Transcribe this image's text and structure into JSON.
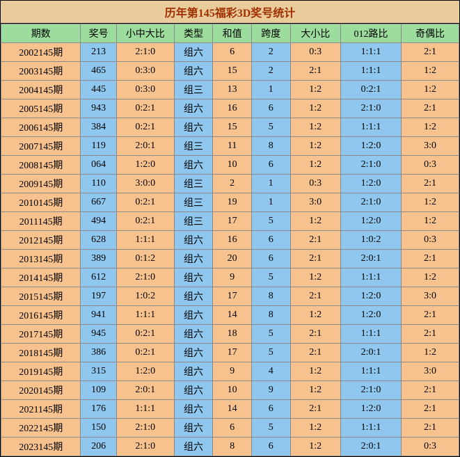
{
  "title": "历年第145福彩3D奖号统计",
  "columns": [
    "期数",
    "奖号",
    "小中大比",
    "类型",
    "和值",
    "跨度",
    "大小比",
    "012路比",
    "奇偶比"
  ],
  "colors": {
    "header_bg": "#9cdc9c",
    "title_bg": "#eacb9c",
    "orange": "#f7c28e",
    "blue": "#8fc7ef",
    "border": "#8a8a8a",
    "title_text": "#a03000"
  },
  "col_classes": [
    "col-period",
    "col-num",
    "col-ratio",
    "col-type",
    "col-sum",
    "col-span",
    "col-size",
    "col-012",
    "col-oe"
  ],
  "rows": [
    {
      "cells": [
        "2002145期",
        "213",
        "2:1:0",
        "组六",
        "6",
        "2",
        "0:3",
        "1:1:1",
        "2:1"
      ],
      "colors": [
        "o",
        "b",
        "o",
        "b",
        "o",
        "b",
        "o",
        "b",
        "o"
      ]
    },
    {
      "cells": [
        "2003145期",
        "465",
        "0:3:0",
        "组六",
        "15",
        "2",
        "2:1",
        "1:1:1",
        "1:2"
      ],
      "colors": [
        "o",
        "b",
        "o",
        "b",
        "o",
        "b",
        "o",
        "b",
        "o"
      ]
    },
    {
      "cells": [
        "2004145期",
        "445",
        "0:3:0",
        "组三",
        "13",
        "1",
        "1:2",
        "0:2:1",
        "1:2"
      ],
      "colors": [
        "o",
        "b",
        "o",
        "b",
        "o",
        "b",
        "o",
        "b",
        "o"
      ]
    },
    {
      "cells": [
        "2005145期",
        "943",
        "0:2:1",
        "组六",
        "16",
        "6",
        "1:2",
        "2:1:0",
        "2:1"
      ],
      "colors": [
        "o",
        "b",
        "o",
        "b",
        "o",
        "b",
        "o",
        "b",
        "o"
      ]
    },
    {
      "cells": [
        "2006145期",
        "384",
        "0:2:1",
        "组六",
        "15",
        "5",
        "1:2",
        "1:1:1",
        "1:2"
      ],
      "colors": [
        "o",
        "b",
        "o",
        "b",
        "o",
        "b",
        "o",
        "b",
        "o"
      ]
    },
    {
      "cells": [
        "2007145期",
        "119",
        "2:0:1",
        "组三",
        "11",
        "8",
        "1:2",
        "1:2:0",
        "3:0"
      ],
      "colors": [
        "o",
        "b",
        "o",
        "b",
        "o",
        "b",
        "o",
        "b",
        "o"
      ]
    },
    {
      "cells": [
        "2008145期",
        "064",
        "1:2:0",
        "组六",
        "10",
        "6",
        "1:2",
        "2:1:0",
        "0:3"
      ],
      "colors": [
        "o",
        "b",
        "o",
        "b",
        "o",
        "b",
        "o",
        "b",
        "o"
      ]
    },
    {
      "cells": [
        "2009145期",
        "110",
        "3:0:0",
        "组三",
        "2",
        "1",
        "0:3",
        "1:2:0",
        "2:1"
      ],
      "colors": [
        "o",
        "b",
        "o",
        "b",
        "o",
        "b",
        "o",
        "b",
        "o"
      ]
    },
    {
      "cells": [
        "2010145期",
        "667",
        "0:2:1",
        "组三",
        "19",
        "1",
        "3:0",
        "2:1:0",
        "1:2"
      ],
      "colors": [
        "o",
        "b",
        "o",
        "b",
        "o",
        "b",
        "o",
        "b",
        "o"
      ]
    },
    {
      "cells": [
        "2011145期",
        "494",
        "0:2:1",
        "组三",
        "17",
        "5",
        "1:2",
        "1:2:0",
        "1:2"
      ],
      "colors": [
        "o",
        "b",
        "o",
        "b",
        "o",
        "b",
        "o",
        "b",
        "o"
      ]
    },
    {
      "cells": [
        "2012145期",
        "628",
        "1:1:1",
        "组六",
        "16",
        "6",
        "2:1",
        "1:0:2",
        "0:3"
      ],
      "colors": [
        "o",
        "b",
        "o",
        "b",
        "o",
        "b",
        "o",
        "b",
        "o"
      ]
    },
    {
      "cells": [
        "2013145期",
        "389",
        "0:1:2",
        "组六",
        "20",
        "6",
        "2:1",
        "2:0:1",
        "2:1"
      ],
      "colors": [
        "o",
        "b",
        "o",
        "b",
        "o",
        "b",
        "o",
        "b",
        "o"
      ]
    },
    {
      "cells": [
        "2014145期",
        "612",
        "2:1:0",
        "组六",
        "9",
        "5",
        "1:2",
        "1:1:1",
        "1:2"
      ],
      "colors": [
        "o",
        "b",
        "o",
        "b",
        "o",
        "b",
        "o",
        "b",
        "o"
      ]
    },
    {
      "cells": [
        "2015145期",
        "197",
        "1:0:2",
        "组六",
        "17",
        "8",
        "2:1",
        "1:2:0",
        "3:0"
      ],
      "colors": [
        "o",
        "b",
        "o",
        "b",
        "o",
        "b",
        "o",
        "b",
        "o"
      ]
    },
    {
      "cells": [
        "2016145期",
        "941",
        "1:1:1",
        "组六",
        "14",
        "8",
        "1:2",
        "1:2:0",
        "2:1"
      ],
      "colors": [
        "o",
        "b",
        "o",
        "b",
        "o",
        "b",
        "o",
        "b",
        "o"
      ]
    },
    {
      "cells": [
        "2017145期",
        "945",
        "0:2:1",
        "组六",
        "18",
        "5",
        "2:1",
        "1:1:1",
        "2:1"
      ],
      "colors": [
        "o",
        "b",
        "o",
        "b",
        "o",
        "b",
        "o",
        "b",
        "o"
      ]
    },
    {
      "cells": [
        "2018145期",
        "386",
        "0:2:1",
        "组六",
        "17",
        "5",
        "2:1",
        "2:0:1",
        "1:2"
      ],
      "colors": [
        "o",
        "b",
        "o",
        "b",
        "o",
        "b",
        "o",
        "b",
        "o"
      ]
    },
    {
      "cells": [
        "2019145期",
        "315",
        "1:2:0",
        "组六",
        "9",
        "4",
        "1:2",
        "1:1:1",
        "3:0"
      ],
      "colors": [
        "o",
        "b",
        "o",
        "b",
        "o",
        "b",
        "o",
        "b",
        "o"
      ]
    },
    {
      "cells": [
        "2020145期",
        "109",
        "2:0:1",
        "组六",
        "10",
        "9",
        "1:2",
        "2:1:0",
        "2:1"
      ],
      "colors": [
        "o",
        "b",
        "o",
        "b",
        "o",
        "b",
        "o",
        "b",
        "o"
      ]
    },
    {
      "cells": [
        "2021145期",
        "176",
        "1:1:1",
        "组六",
        "14",
        "6",
        "2:1",
        "1:2:0",
        "2:1"
      ],
      "colors": [
        "o",
        "b",
        "o",
        "b",
        "o",
        "b",
        "o",
        "b",
        "o"
      ]
    },
    {
      "cells": [
        "2022145期",
        "150",
        "2:1:0",
        "组六",
        "6",
        "5",
        "1:2",
        "1:1:1",
        "2:1"
      ],
      "colors": [
        "o",
        "b",
        "o",
        "b",
        "o",
        "b",
        "o",
        "b",
        "o"
      ]
    },
    {
      "cells": [
        "2023145期",
        "206",
        "2:1:0",
        "组六",
        "8",
        "6",
        "1:2",
        "2:0:1",
        "0:3"
      ],
      "colors": [
        "o",
        "b",
        "o",
        "b",
        "o",
        "b",
        "o",
        "b",
        "o"
      ]
    }
  ]
}
